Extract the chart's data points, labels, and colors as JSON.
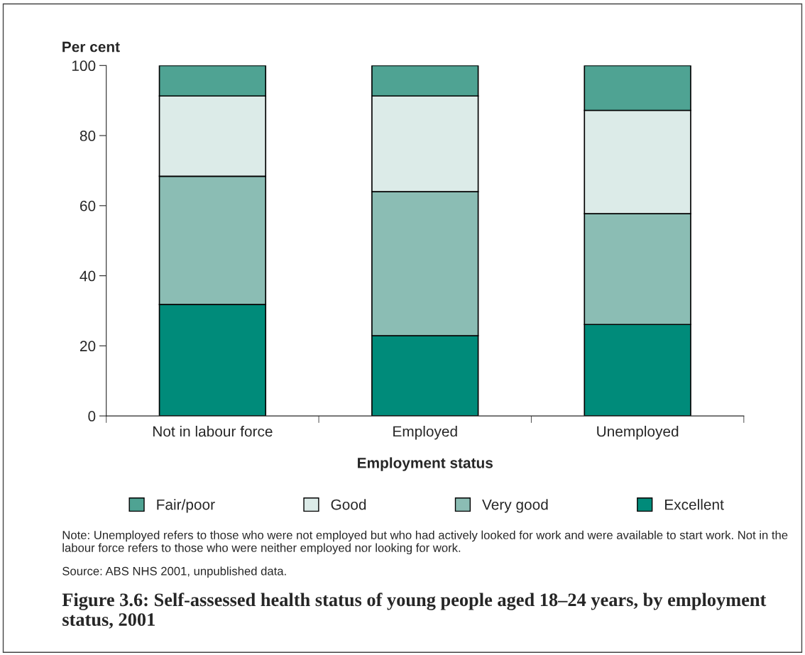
{
  "chart_data": {
    "type": "bar",
    "stacked": true,
    "title": "Figure 3.6: Self-assessed health status of young people aged 18–24 years, by employment status, 2001",
    "xlabel": "Employment status",
    "ylabel": "Per cent",
    "categories": [
      "Not in labour force",
      "Employed",
      "Unemployed"
    ],
    "series": [
      {
        "name": "Excellent",
        "color": "#008b7a",
        "values": [
          31.8,
          22.9,
          26.1
        ]
      },
      {
        "name": "Very good",
        "color": "#8bbdb4",
        "values": [
          36.6,
          41.1,
          31.6
        ]
      },
      {
        "name": "Good",
        "color": "#dcebe8",
        "values": [
          22.9,
          27.3,
          29.5
        ]
      },
      {
        "name": "Fair/poor",
        "color": "#4fa393",
        "values": [
          8.7,
          8.7,
          12.8
        ]
      }
    ],
    "ylim": [
      0,
      100
    ],
    "yticks": [
      0,
      20,
      40,
      60,
      80,
      100
    ],
    "grid": false,
    "legend": "bottom",
    "annotations": [
      "Note: Unemployed refers to those who were not employed but who had actively looked for work and were available to start work. Not in the labour force refers to those who were neither employed nor looking for work.",
      "Source: ABS NHS 2001, unpublished data."
    ]
  }
}
